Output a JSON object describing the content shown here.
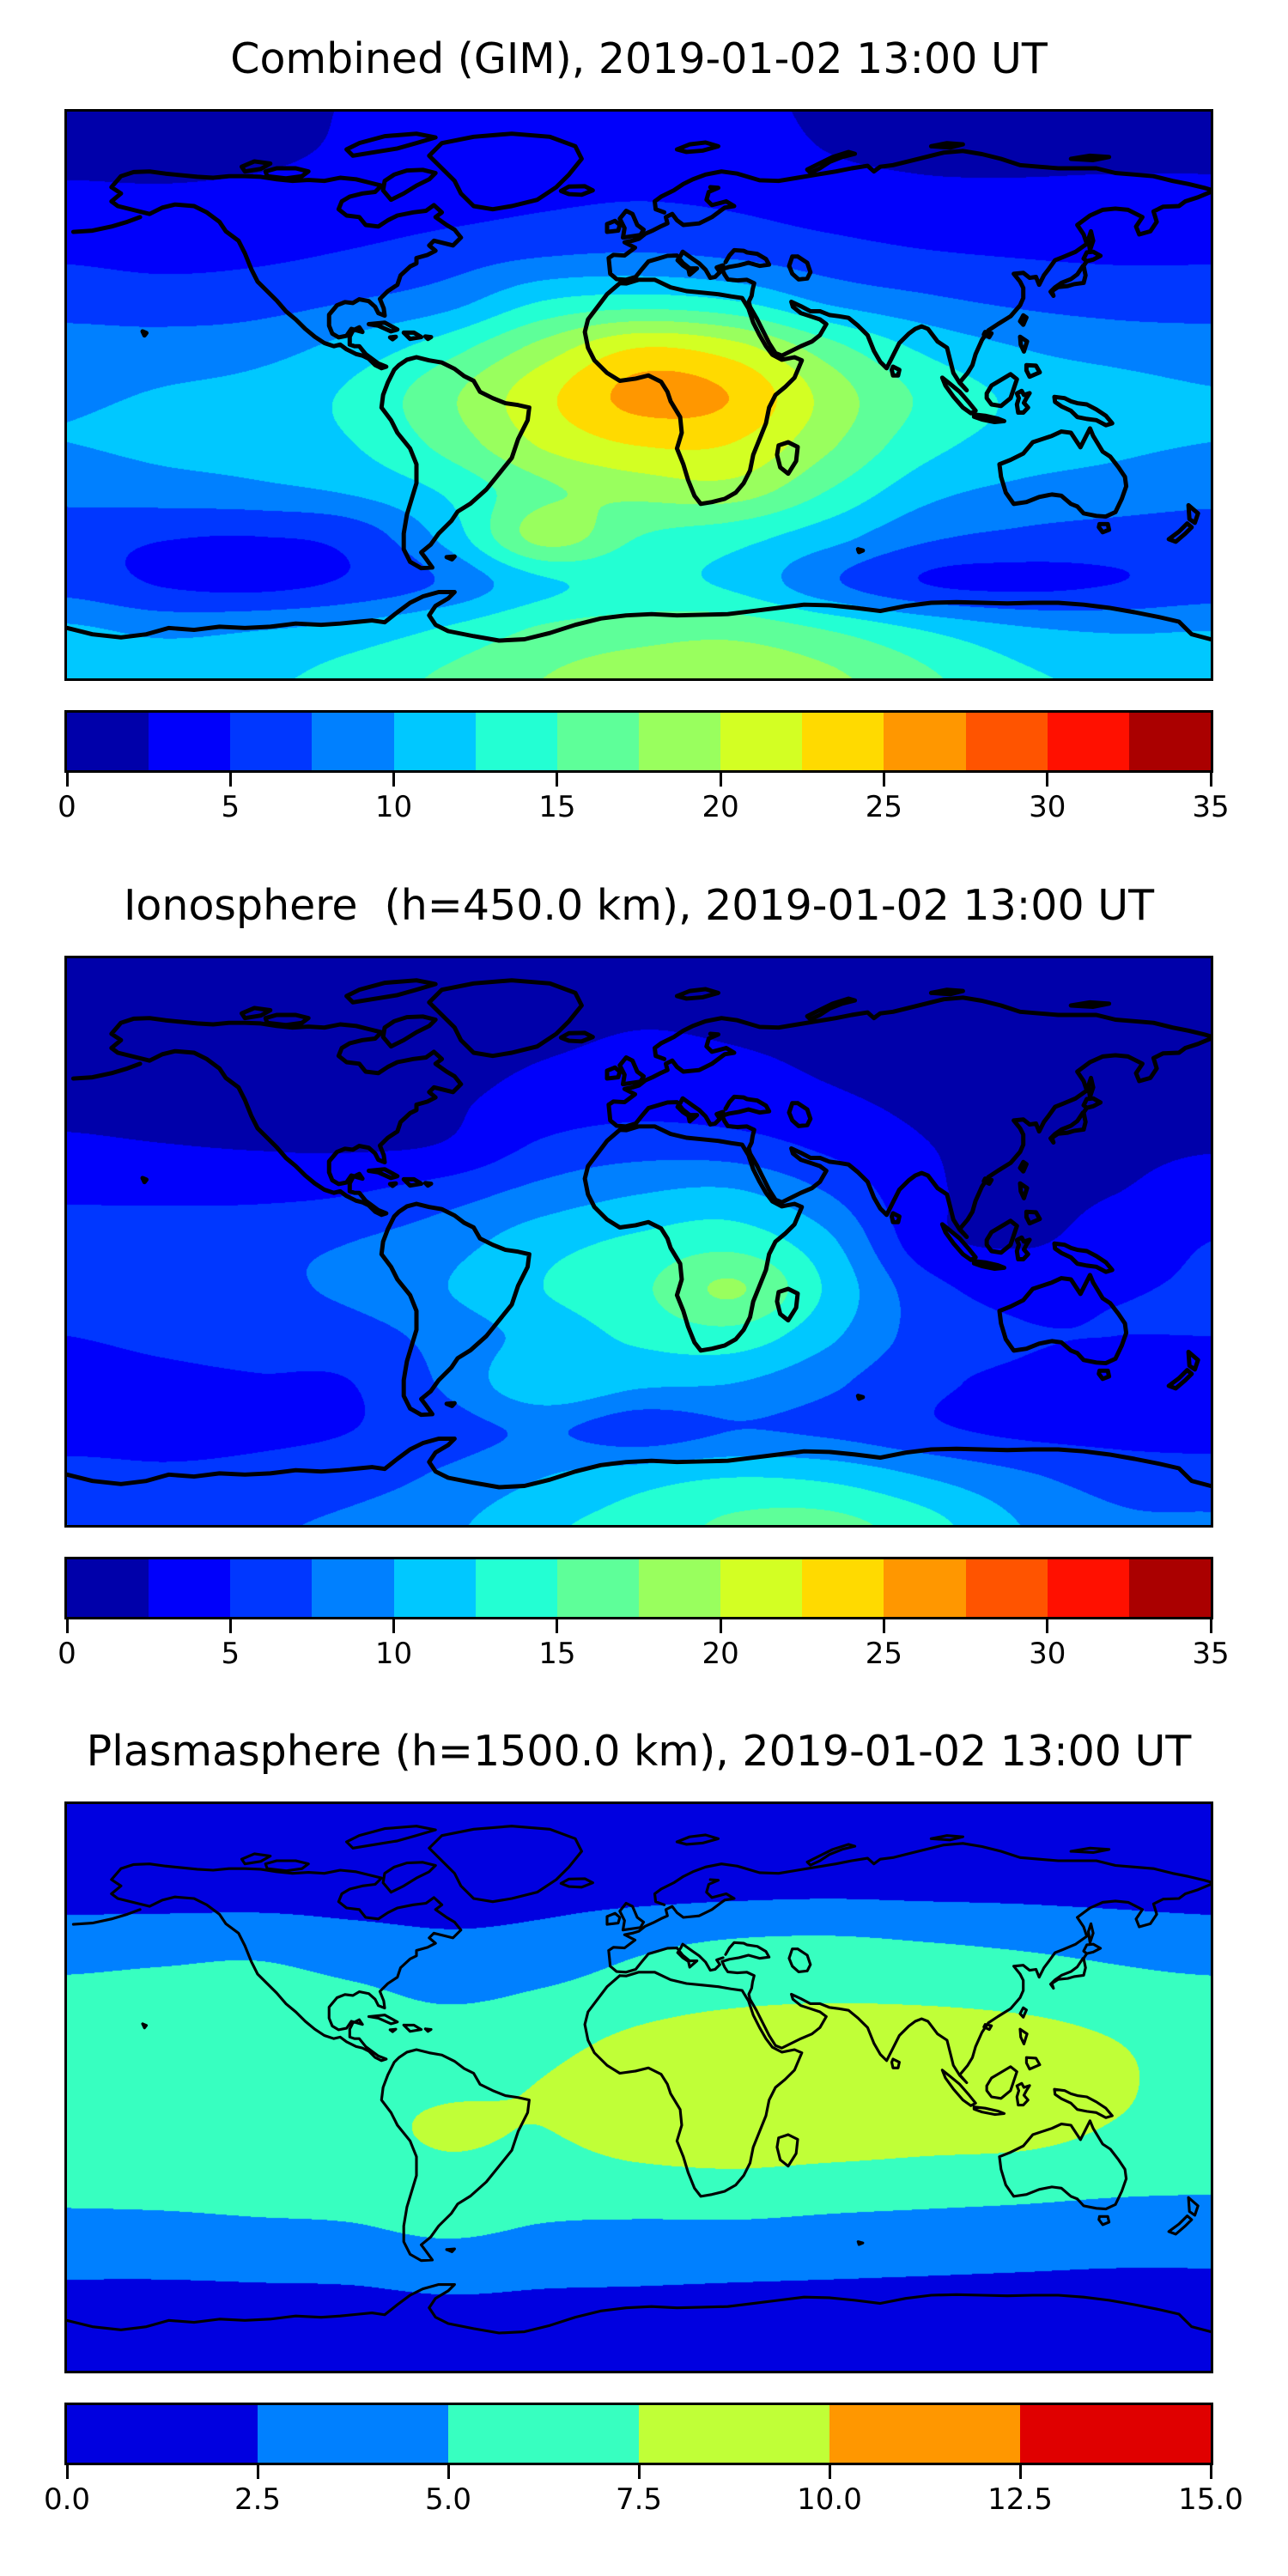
{
  "chart_data": [
    {
      "id": "combined",
      "type": "heatmap",
      "subtype": "filled-contour-world-map",
      "title": "Combined (GIM), 2019-01-02 13:00 UT",
      "projection": "equirectangular",
      "lon_range": [
        -180,
        180
      ],
      "lat_range": [
        -90,
        90
      ],
      "grid_lons": [
        -180,
        -150,
        -120,
        -90,
        -60,
        -30,
        0,
        30,
        60,
        90,
        120,
        150,
        180
      ],
      "grid_lats": [
        90,
        75,
        60,
        45,
        30,
        15,
        0,
        -15,
        -30,
        -45,
        -60,
        -75,
        -90
      ],
      "values_tecu": [
        [
          2.0,
          2.0,
          2.1,
          2.6,
          3.0,
          3.2,
          3.2,
          3.0,
          2.2,
          2.0,
          2.0,
          2.0,
          2.0
        ],
        [
          2.1,
          2.1,
          2.3,
          2.8,
          3.4,
          3.8,
          3.8,
          3.6,
          2.6,
          2.2,
          2.2,
          2.2,
          2.2
        ],
        [
          3.2,
          3.0,
          3.2,
          3.6,
          4.2,
          4.8,
          5.2,
          4.8,
          4.0,
          3.4,
          3.2,
          3.4,
          3.4
        ],
        [
          4.6,
          4.2,
          4.5,
          5.2,
          6.2,
          7.2,
          7.6,
          7.0,
          6.0,
          5.2,
          4.8,
          4.6,
          4.6
        ],
        [
          6.5,
          6.2,
          6.5,
          7.5,
          9.0,
          12.5,
          13.5,
          12.5,
          9.5,
          8.0,
          7.0,
          6.5,
          6.5
        ],
        [
          8.5,
          8.5,
          9.0,
          11.0,
          14.0,
          18.5,
          22.5,
          21.0,
          16.0,
          12.0,
          10.0,
          9.0,
          8.5
        ],
        [
          9.6,
          10.2,
          11.0,
          13.0,
          17.0,
          21.8,
          25.8,
          24.8,
          19.0,
          14.5,
          12.0,
          11.0,
          10.2
        ],
        [
          10.0,
          10.5,
          11.0,
          12.5,
          16.0,
          20.5,
          22.8,
          22.5,
          18.0,
          13.5,
          11.5,
          10.5,
          10.0
        ],
        [
          8.5,
          9.0,
          9.5,
          10.5,
          13.0,
          17.0,
          18.5,
          19.0,
          15.0,
          11.0,
          9.5,
          9.0,
          8.5
        ],
        [
          6.0,
          5.2,
          5.0,
          6.0,
          11.0,
          18.5,
          15.0,
          13.5,
          11.0,
          8.0,
          7.0,
          6.5,
          6.2
        ],
        [
          6.5,
          4.8,
          4.3,
          5.5,
          8.0,
          12.0,
          13.0,
          12.0,
          8.0,
          5.0,
          4.4,
          5.0,
          6.0
        ],
        [
          10.5,
          9.5,
          10.0,
          11.0,
          13.0,
          15.5,
          16.5,
          16.8,
          15.0,
          12.5,
          10.5,
          9.8,
          10.0
        ],
        [
          12.0,
          11.5,
          12.0,
          13.5,
          15.5,
          17.5,
          18.8,
          19.2,
          18.0,
          15.5,
          13.0,
          12.0,
          12.0
        ]
      ],
      "colorbar": {
        "orientation": "horizontal",
        "vmin": 0,
        "vmax": 35,
        "level_step": 2.5,
        "tick_values": [
          0,
          5,
          10,
          15,
          20,
          25,
          30,
          35
        ],
        "tick_labels": [
          "0",
          "5",
          "10",
          "15",
          "20",
          "25",
          "30",
          "35"
        ],
        "colors": [
          "#0000aa",
          "#0000fb",
          "#0037ff",
          "#0080ff",
          "#00c8ff",
          "#23ffd3",
          "#5eff99",
          "#99ff5e",
          "#d3ff23",
          "#ffda00",
          "#ff9700",
          "#ff5400",
          "#ff1000",
          "#aa0000"
        ]
      },
      "coastline_color": "#000000"
    },
    {
      "id": "ionosphere",
      "type": "heatmap",
      "subtype": "filled-contour-world-map",
      "title": "Ionosphere  (h=450.0 km), 2019-01-02 13:00 UT",
      "projection": "equirectangular",
      "lon_range": [
        -180,
        180
      ],
      "lat_range": [
        -90,
        90
      ],
      "grid_lons": [
        -180,
        -150,
        -120,
        -90,
        -60,
        -30,
        0,
        30,
        60,
        90,
        120,
        150,
        180
      ],
      "grid_lats": [
        90,
        75,
        60,
        45,
        30,
        15,
        0,
        -15,
        -30,
        -45,
        -60,
        -75,
        -90
      ],
      "values_tecu": [
        [
          1.8,
          1.8,
          1.8,
          1.8,
          1.8,
          1.9,
          2.0,
          2.0,
          1.9,
          1.8,
          1.8,
          1.8,
          1.8
        ],
        [
          1.9,
          1.9,
          1.8,
          1.8,
          1.9,
          2.1,
          2.3,
          2.2,
          2.0,
          1.9,
          1.8,
          1.8,
          1.9
        ],
        [
          2.0,
          2.0,
          1.9,
          1.8,
          1.9,
          2.4,
          2.8,
          2.6,
          2.2,
          1.9,
          1.8,
          1.8,
          1.9
        ],
        [
          2.2,
          2.1,
          2.0,
          2.0,
          2.2,
          3.4,
          4.0,
          3.6,
          2.8,
          2.1,
          1.9,
          1.9,
          2.0
        ],
        [
          2.8,
          2.6,
          2.4,
          2.3,
          2.8,
          5.5,
          6.5,
          6.2,
          4.5,
          2.6,
          2.2,
          2.2,
          2.4
        ],
        [
          4.6,
          4.5,
          4.5,
          5.0,
          6.5,
          8.5,
          10.0,
          10.5,
          7.5,
          3.0,
          2.2,
          2.5,
          3.4
        ],
        [
          6.2,
          6.5,
          6.8,
          7.5,
          9.0,
          11.5,
          13.0,
          14.0,
          10.5,
          3.5,
          2.3,
          3.5,
          5.0
        ],
        [
          6.0,
          6.5,
          7.0,
          8.0,
          10.0,
          12.5,
          14.5,
          17.8,
          12.0,
          6.0,
          4.2,
          4.8,
          5.2
        ],
        [
          5.0,
          5.5,
          6.0,
          6.5,
          8.5,
          11.0,
          13.0,
          14.0,
          10.5,
          6.5,
          5.2,
          5.0,
          5.0
        ],
        [
          4.2,
          4.5,
          4.8,
          5.0,
          8.0,
          12.0,
          10.5,
          10.0,
          8.0,
          5.5,
          4.6,
          4.2,
          4.2
        ],
        [
          4.0,
          4.2,
          4.5,
          5.0,
          6.5,
          7.8,
          6.2,
          7.5,
          7.0,
          5.5,
          4.5,
          4.2,
          4.0
        ],
        [
          6.0,
          5.5,
          5.8,
          6.5,
          8.0,
          10.0,
          11.5,
          12.5,
          12.0,
          10.0,
          8.0,
          6.5,
          6.2
        ],
        [
          7.5,
          7.0,
          7.2,
          8.0,
          9.5,
          12.0,
          13.5,
          15.5,
          15.8,
          13.5,
          10.0,
          8.0,
          7.8
        ]
      ],
      "colorbar": {
        "orientation": "horizontal",
        "vmin": 0,
        "vmax": 35,
        "level_step": 2.5,
        "tick_values": [
          0,
          5,
          10,
          15,
          20,
          25,
          30,
          35
        ],
        "tick_labels": [
          "0",
          "5",
          "10",
          "15",
          "20",
          "25",
          "30",
          "35"
        ],
        "colors": [
          "#0000aa",
          "#0000fb",
          "#0037ff",
          "#0080ff",
          "#00c8ff",
          "#23ffd3",
          "#5eff99",
          "#99ff5e",
          "#d3ff23",
          "#ffda00",
          "#ff9700",
          "#ff5400",
          "#ff1000",
          "#aa0000"
        ]
      },
      "coastline_color": "#000000"
    },
    {
      "id": "plasmasphere",
      "type": "heatmap",
      "subtype": "filled-contour-world-map",
      "title": "Plasmasphere (h=1500.0 km), 2019-01-02 13:00 UT",
      "projection": "equirectangular",
      "lon_range": [
        -180,
        180
      ],
      "lat_range": [
        -90,
        90
      ],
      "grid_lons": [
        -180,
        -150,
        -120,
        -90,
        -60,
        -30,
        0,
        30,
        60,
        90,
        120,
        150,
        180
      ],
      "grid_lats": [
        90,
        75,
        60,
        45,
        30,
        15,
        0,
        -15,
        -30,
        -45,
        -60,
        -75,
        -90
      ],
      "values_tecu": [
        [
          1.5,
          1.5,
          1.5,
          1.5,
          1.5,
          1.5,
          1.5,
          1.5,
          1.5,
          1.5,
          1.5,
          1.5,
          1.5
        ],
        [
          1.6,
          1.6,
          1.6,
          1.6,
          1.6,
          1.7,
          1.7,
          1.7,
          1.7,
          1.7,
          1.6,
          1.6,
          1.6
        ],
        [
          1.9,
          1.9,
          1.9,
          1.8,
          1.8,
          2.0,
          2.2,
          2.4,
          2.5,
          2.4,
          2.3,
          2.1,
          1.9
        ],
        [
          4.0,
          4.2,
          4.4,
          3.6,
          3.0,
          3.4,
          4.6,
          5.4,
          5.6,
          5.2,
          4.8,
          4.4,
          4.0
        ],
        [
          5.5,
          5.8,
          6.0,
          5.4,
          4.6,
          5.2,
          6.2,
          6.8,
          7.0,
          6.8,
          6.4,
          5.8,
          5.5
        ],
        [
          6.2,
          6.5,
          6.8,
          6.5,
          6.2,
          6.8,
          8.0,
          9.0,
          9.5,
          9.5,
          8.8,
          7.5,
          6.5
        ],
        [
          6.5,
          6.8,
          7.0,
          7.0,
          7.2,
          7.6,
          8.8,
          9.6,
          9.7,
          9.7,
          9.2,
          7.8,
          6.8
        ],
        [
          6.3,
          6.6,
          6.8,
          6.8,
          7.8,
          7.4,
          8.6,
          9.2,
          9.0,
          8.5,
          8.2,
          7.2,
          6.5
        ],
        [
          5.6,
          5.8,
          6.0,
          6.0,
          6.6,
          6.2,
          6.6,
          6.8,
          6.4,
          6.2,
          6.0,
          5.6,
          5.4
        ],
        [
          4.4,
          4.4,
          4.6,
          4.8,
          5.4,
          4.8,
          4.6,
          4.6,
          4.4,
          4.2,
          4.0,
          3.8,
          3.8
        ],
        [
          2.6,
          2.6,
          2.7,
          2.8,
          3.2,
          2.9,
          2.8,
          2.7,
          2.6,
          2.5,
          2.4,
          2.3,
          2.3
        ],
        [
          1.6,
          1.6,
          1.6,
          1.6,
          1.7,
          1.7,
          1.7,
          1.6,
          1.6,
          1.6,
          1.6,
          1.6,
          1.6
        ],
        [
          1.4,
          1.4,
          1.4,
          1.4,
          1.4,
          1.4,
          1.4,
          1.4,
          1.4,
          1.4,
          1.4,
          1.4,
          1.4
        ]
      ],
      "colorbar": {
        "orientation": "horizontal",
        "vmin": 0,
        "vmax": 15,
        "level_step": 2.5,
        "tick_values": [
          0,
          2.5,
          5,
          7.5,
          10,
          12.5,
          15
        ],
        "tick_labels": [
          "0.0",
          "2.5",
          "5.0",
          "7.5",
          "10.0",
          "12.5",
          "15.0"
        ],
        "colors": [
          "#0000e0",
          "#0080ff",
          "#37ffc0",
          "#c0ff37",
          "#ff9700",
          "#e00000"
        ]
      },
      "coastline_color": "#000000"
    }
  ]
}
